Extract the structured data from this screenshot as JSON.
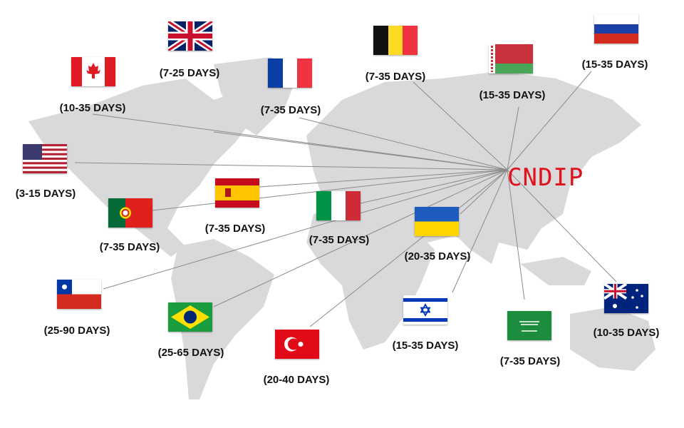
{
  "hub": {
    "label": "CNDIP",
    "color": "#e0121b"
  },
  "destinations": [
    {
      "country": "united-kingdom",
      "days": "(7-25 DAYS)"
    },
    {
      "country": "canada",
      "days": "(10-35 DAYS)"
    },
    {
      "country": "france",
      "days": "(7-35 DAYS)"
    },
    {
      "country": "belgium",
      "days": "(7-35 DAYS)"
    },
    {
      "country": "belarus",
      "days": "(15-35 DAYS)"
    },
    {
      "country": "russia",
      "days": "(15-35 DAYS)"
    },
    {
      "country": "united-states",
      "days": "(3-15 DAYS)"
    },
    {
      "country": "spain",
      "days": "(7-35 DAYS)"
    },
    {
      "country": "portugal",
      "days": "(7-35 DAYS)"
    },
    {
      "country": "italy",
      "days": "(7-35 DAYS)"
    },
    {
      "country": "ukraine",
      "days": "(20-35 DAYS)"
    },
    {
      "country": "chile",
      "days": "(25-90 DAYS)"
    },
    {
      "country": "brazil",
      "days": "(25-65 DAYS)"
    },
    {
      "country": "turkey",
      "days": "(20-40 DAYS)"
    },
    {
      "country": "israel",
      "days": "(15-35 DAYS)"
    },
    {
      "country": "saudi-arabia",
      "days": "(7-35 DAYS)"
    },
    {
      "country": "australia",
      "days": "(10-35 DAYS)"
    }
  ],
  "map_color": "#d9d9db",
  "line_color": "#8a8a8a"
}
